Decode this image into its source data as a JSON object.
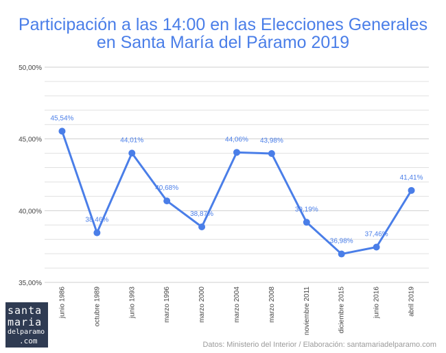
{
  "title_line1": "Participación a las 14:00 en las Elecciones Generales",
  "title_line2": "en Santa María del Páramo 2019",
  "logo": {
    "line1": "santa",
    "line2": "maria",
    "line3": "delparamo",
    "line4": ".com"
  },
  "source": "Datos: Ministerio del Interior / Elaboración: santamariadelparamo.com",
  "colors": {
    "line": "#4a7ee8",
    "title": "#4a7ee8",
    "grid": "#e0e0e0",
    "axis_text": "#444444"
  },
  "chart_data": {
    "type": "line",
    "title": "Participación a las 14:00 en las Elecciones Generales en Santa María del Páramo 2019",
    "categories": [
      "junio 1986",
      "octubre 1989",
      "junio 1993",
      "marzo 1996",
      "marzo 2000",
      "marzo 2004",
      "marzo 2008",
      "noviembre 2011",
      "diciembre 2015",
      "junio 2016",
      "abril 2019"
    ],
    "values": [
      45.54,
      38.46,
      44.01,
      40.68,
      38.87,
      44.06,
      43.98,
      39.19,
      36.98,
      37.46,
      41.41
    ],
    "data_labels": [
      "45,54%",
      "38,46%",
      "44,01%",
      "40,68%",
      "38,87%",
      "44,06%",
      "43,98%",
      "39,19%",
      "36,98%",
      "37,46%",
      "41,41%"
    ],
    "ylim": [
      35,
      50
    ],
    "y_ticks": [
      35,
      40,
      45,
      50
    ],
    "y_tick_labels": [
      "35,00%",
      "40,00%",
      "45,00%",
      "50,00%"
    ],
    "minor_gridline_step": 1,
    "grid": true,
    "xlabel": "",
    "ylabel": ""
  }
}
